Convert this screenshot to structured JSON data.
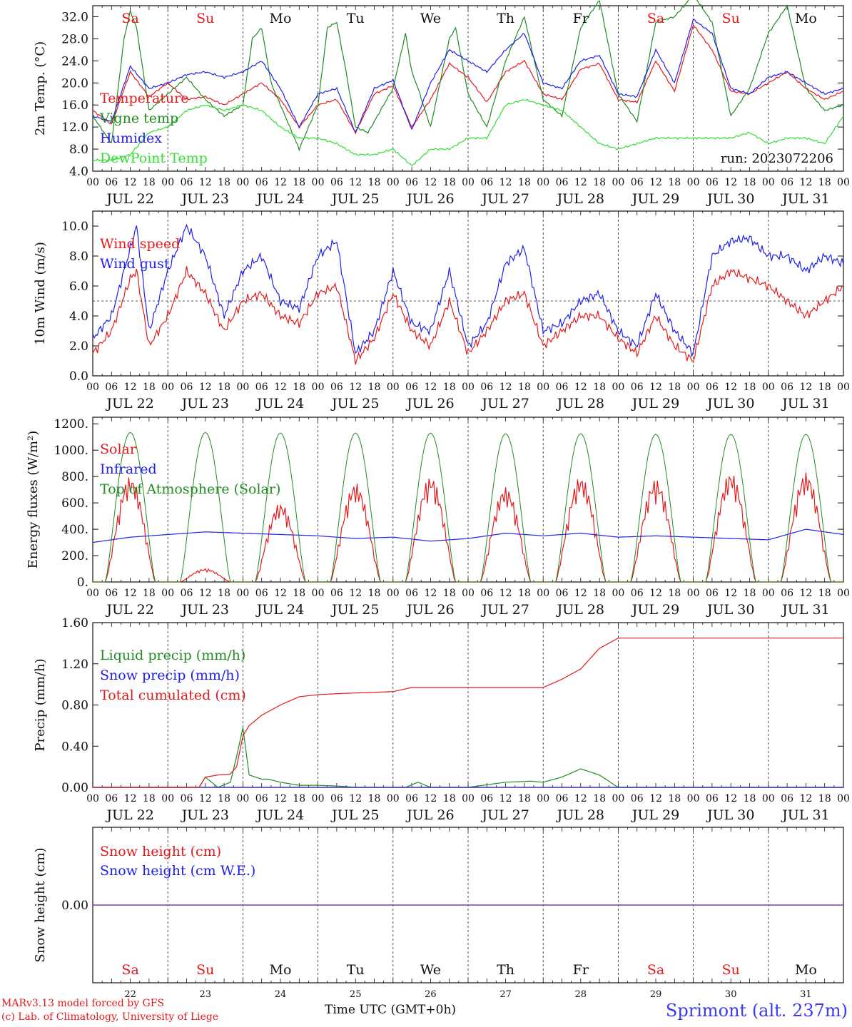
{
  "days": [
    "22",
    "23",
    "24",
    "25",
    "26",
    "27",
    "28",
    "29",
    "30",
    "31"
  ],
  "weekdays": [
    "Sa",
    "Su",
    "Mo",
    "Tu",
    "We",
    "Th",
    "Fr",
    "Sa",
    "Su",
    "Mo"
  ],
  "weekday_colors": [
    "#e31a1c",
    "#e31a1c",
    "#111111",
    "#111111",
    "#111111",
    "#111111",
    "#111111",
    "#e31a1c",
    "#e31a1c",
    "#111111"
  ],
  "date_labels": [
    "JUL 22",
    "JUL 23",
    "JUL 24",
    "JUL 25",
    "JUL 26",
    "JUL 27",
    "JUL 28",
    "JUL 29",
    "JUL 30",
    "JUL 31"
  ],
  "hour_labels": [
    "00",
    "06",
    "12",
    "18"
  ],
  "footer": {
    "model": "MARv3.13 model forced by GFS",
    "credit": "(c) Lab. of Climatology, University of Liege",
    "xaxis": "Time UTC (GMT+0h)",
    "station": "Sprimont (alt. 237m)"
  },
  "chart_data": [
    {
      "type": "line",
      "ylabel": "2m Temp. (°C)",
      "ylim": [
        4,
        34
      ],
      "yticks": [
        "4.0",
        "8.0",
        "12.0",
        "16.0",
        "20.0",
        "24.0",
        "28.0",
        "32.0"
      ],
      "annotation": "run: 2023072206",
      "x_unit": "hours since JUL 22 00 UTC",
      "series": [
        {
          "name": "Temperature",
          "color": "#e31a1c",
          "x": [
            0,
            6,
            12,
            18,
            24,
            30,
            36,
            42,
            48,
            54,
            60,
            66,
            72,
            78,
            84,
            90,
            96,
            102,
            108,
            114,
            120,
            126,
            132,
            138,
            144,
            150,
            156,
            162,
            168,
            174,
            180,
            186,
            192,
            198,
            204,
            210,
            216,
            222,
            228,
            234,
            240
          ],
          "values": [
            15,
            12.5,
            22,
            17.5,
            20,
            17,
            17.5,
            16,
            18,
            20,
            17,
            12,
            16,
            17,
            11,
            18,
            19.5,
            12,
            17,
            23.5,
            21,
            16.5,
            22,
            24,
            18,
            17,
            22.5,
            23.5,
            17,
            16.5,
            24,
            18.5,
            30.5,
            26,
            18.5,
            18,
            20,
            22,
            19,
            17,
            18.5
          ]
        },
        {
          "name": "Vigne temp",
          "color": "#228b22",
          "x": [
            0,
            6,
            10,
            12,
            14,
            18,
            24,
            30,
            36,
            42,
            48,
            51,
            54,
            57,
            60,
            66,
            72,
            75,
            78,
            81,
            84,
            88,
            96,
            100,
            102,
            104,
            108,
            114,
            116,
            120,
            126,
            132,
            138,
            144,
            150,
            156,
            162,
            168,
            174,
            180,
            186,
            192,
            198,
            204,
            210,
            216,
            222,
            228,
            234,
            240
          ],
          "values": [
            14,
            9,
            28,
            33,
            30,
            15,
            18,
            21,
            17,
            14,
            16,
            28,
            30,
            20,
            16,
            8,
            16,
            30,
            31,
            22,
            12,
            11,
            19,
            29,
            22,
            19,
            12,
            28,
            30,
            18,
            12,
            24,
            32,
            17,
            14,
            30,
            35,
            18,
            13,
            31,
            32,
            36,
            31,
            14,
            19,
            29,
            34,
            19,
            15,
            16
          ]
        },
        {
          "name": "Humidex",
          "color": "#2020e8",
          "x": [
            0,
            6,
            12,
            18,
            24,
            30,
            36,
            42,
            48,
            54,
            60,
            66,
            72,
            78,
            84,
            90,
            96,
            102,
            108,
            114,
            120,
            126,
            132,
            138,
            144,
            150,
            156,
            162,
            168,
            174,
            180,
            186,
            192,
            198,
            204,
            210,
            216,
            222,
            228,
            234,
            240
          ],
          "values": [
            14,
            13,
            23,
            19,
            20,
            21.5,
            22,
            21,
            22,
            24,
            19,
            12,
            18,
            19,
            11,
            19,
            20.5,
            11.5,
            20,
            26,
            24,
            22,
            26,
            29,
            20,
            19,
            24,
            25,
            18,
            17.5,
            26,
            20,
            31.5,
            29,
            19,
            18,
            21,
            22,
            20,
            18,
            19
          ]
        },
        {
          "name": "DewPoint Temp",
          "color": "#33dd33",
          "x": [
            0,
            6,
            12,
            18,
            24,
            30,
            36,
            42,
            48,
            54,
            60,
            66,
            72,
            78,
            84,
            90,
            96,
            102,
            108,
            114,
            120,
            126,
            132,
            138,
            144,
            150,
            156,
            162,
            168,
            174,
            180,
            186,
            192,
            198,
            204,
            210,
            216,
            222,
            228,
            234,
            240
          ],
          "values": [
            6,
            6,
            7,
            11,
            12,
            15,
            16,
            15,
            16,
            15,
            12,
            10,
            10,
            9,
            7,
            7,
            8,
            5,
            8,
            8,
            10,
            10,
            16,
            17,
            16,
            15,
            12,
            9,
            8,
            9,
            10,
            10,
            10,
            10,
            10,
            11,
            9,
            10,
            10,
            9,
            14
          ]
        }
      ]
    },
    {
      "type": "line",
      "ylabel": "10m Wind (m/s)",
      "ylim": [
        0,
        11
      ],
      "yticks": [
        "0.0",
        "2.0",
        "4.0",
        "6.0",
        "8.0",
        "10.0"
      ],
      "ref_line": 5,
      "x_unit": "hours since JUL 22 00 UTC",
      "series": [
        {
          "name": "Wind speed",
          "color": "#e31a1c",
          "x": [
            0,
            6,
            12,
            14,
            18,
            24,
            30,
            36,
            42,
            48,
            54,
            60,
            66,
            72,
            78,
            84,
            90,
            96,
            102,
            108,
            114,
            120,
            126,
            132,
            138,
            144,
            150,
            156,
            162,
            168,
            174,
            180,
            186,
            192,
            198,
            204,
            210,
            216,
            222,
            228,
            234,
            240
          ],
          "values": [
            1.5,
            3,
            6.5,
            7,
            2,
            4,
            7,
            5.5,
            3,
            5,
            5.5,
            4,
            3.5,
            5.5,
            6,
            1,
            2.5,
            5.5,
            3,
            2,
            5,
            1.5,
            3,
            5,
            5.5,
            2,
            3,
            4,
            4,
            2.5,
            1.5,
            4,
            2,
            1,
            6,
            7,
            6.5,
            6,
            5,
            4,
            5,
            6
          ]
        },
        {
          "name": "Wind gust",
          "color": "#2020e8",
          "x": [
            0,
            6,
            12,
            14,
            18,
            24,
            30,
            36,
            42,
            48,
            54,
            60,
            66,
            72,
            78,
            84,
            90,
            96,
            102,
            108,
            114,
            120,
            126,
            132,
            138,
            144,
            150,
            156,
            162,
            168,
            174,
            180,
            186,
            192,
            198,
            204,
            210,
            216,
            222,
            228,
            234,
            240
          ],
          "values": [
            2.5,
            4,
            8.5,
            10,
            3,
            7,
            10,
            8,
            4,
            7,
            8,
            5,
            4.5,
            8,
            9,
            1.5,
            3,
            7,
            3.5,
            3,
            7,
            2,
            3.5,
            7.5,
            8.5,
            3,
            3.5,
            5,
            5.5,
            3,
            2,
            5.5,
            3,
            1.5,
            8,
            9,
            9.2,
            8,
            8,
            7,
            8,
            7.5
          ]
        }
      ]
    },
    {
      "type": "line",
      "ylabel": "Energy fluxes (W/m²)",
      "ylim": [
        0,
        1250
      ],
      "yticks": [
        "0.",
        "200.",
        "400.",
        "600.",
        "800.",
        "1000.",
        "1200."
      ],
      "x_unit": "hours since JUL 22 00 UTC",
      "series": [
        {
          "name": "Solar",
          "color": "#e31a1c",
          "daily_peak": [
            800,
            100,
            600,
            750,
            800,
            720,
            800,
            780,
            830,
            830
          ]
        },
        {
          "name": "Infrared",
          "color": "#2020e8",
          "x": [
            0,
            12,
            24,
            36,
            48,
            60,
            72,
            84,
            96,
            108,
            120,
            132,
            144,
            156,
            168,
            180,
            192,
            204,
            216,
            228,
            240
          ],
          "values": [
            300,
            340,
            360,
            380,
            370,
            360,
            350,
            330,
            340,
            310,
            330,
            370,
            350,
            370,
            340,
            350,
            340,
            330,
            320,
            400,
            360
          ]
        },
        {
          "name": "Top of Atmosphere (Solar)",
          "color": "#228b22",
          "daily_peak": [
            1135,
            1135,
            1130,
            1130,
            1130,
            1125,
            1125,
            1120,
            1120,
            1120
          ]
        }
      ]
    },
    {
      "type": "line",
      "ylabel": "Precip (mm/h)",
      "ylim": [
        0,
        1.6
      ],
      "yticks": [
        "0.00",
        "0.40",
        "0.80",
        "1.20",
        "1.60"
      ],
      "x_unit": "hours since JUL 22 00 UTC",
      "series": [
        {
          "name": "Liquid precip (mm/h)",
          "color": "#228b22",
          "x": [
            0,
            34,
            36,
            38,
            40,
            44,
            46,
            48,
            50,
            52,
            54,
            56,
            60,
            66,
            72,
            80,
            84,
            100,
            104,
            108,
            120,
            132,
            140,
            144,
            150,
            156,
            162,
            168,
            240
          ],
          "values": [
            0,
            0,
            0.1,
            0.05,
            0,
            0.05,
            0.3,
            0.58,
            0.12,
            0.1,
            0.08,
            0.08,
            0.05,
            0.02,
            0.02,
            0.01,
            0,
            0,
            0.05,
            0,
            0,
            0.05,
            0.06,
            0.05,
            0.1,
            0.18,
            0.12,
            0,
            0
          ]
        },
        {
          "name": "Snow precip (mm/h)",
          "color": "#2020e8",
          "x": [
            0,
            240
          ],
          "values": [
            0,
            0
          ]
        },
        {
          "name": "Total cumulated (cm)",
          "color": "#e31a1c",
          "x": [
            0,
            34,
            36,
            40,
            44,
            46,
            48,
            50,
            54,
            60,
            66,
            72,
            78,
            96,
            102,
            120,
            144,
            150,
            156,
            162,
            168,
            240
          ],
          "values": [
            0,
            0,
            0.1,
            0.12,
            0.13,
            0.2,
            0.5,
            0.6,
            0.7,
            0.8,
            0.88,
            0.9,
            0.91,
            0.93,
            0.97,
            0.97,
            0.97,
            1.05,
            1.15,
            1.35,
            1.45,
            1.45
          ]
        }
      ]
    },
    {
      "type": "line",
      "ylabel": "Snow height (cm)",
      "yticks": [
        "0.00"
      ],
      "x_unit": "hours since JUL 22 00 UTC",
      "series": [
        {
          "name": "Snow height (cm)",
          "color": "#e31a1c",
          "x": [
            0,
            240
          ],
          "values": [
            0,
            0
          ]
        },
        {
          "name": "Snow height (cm W.E.)",
          "color": "#2020e8",
          "x": [
            0,
            240
          ],
          "values": [
            0,
            0
          ]
        }
      ]
    }
  ]
}
